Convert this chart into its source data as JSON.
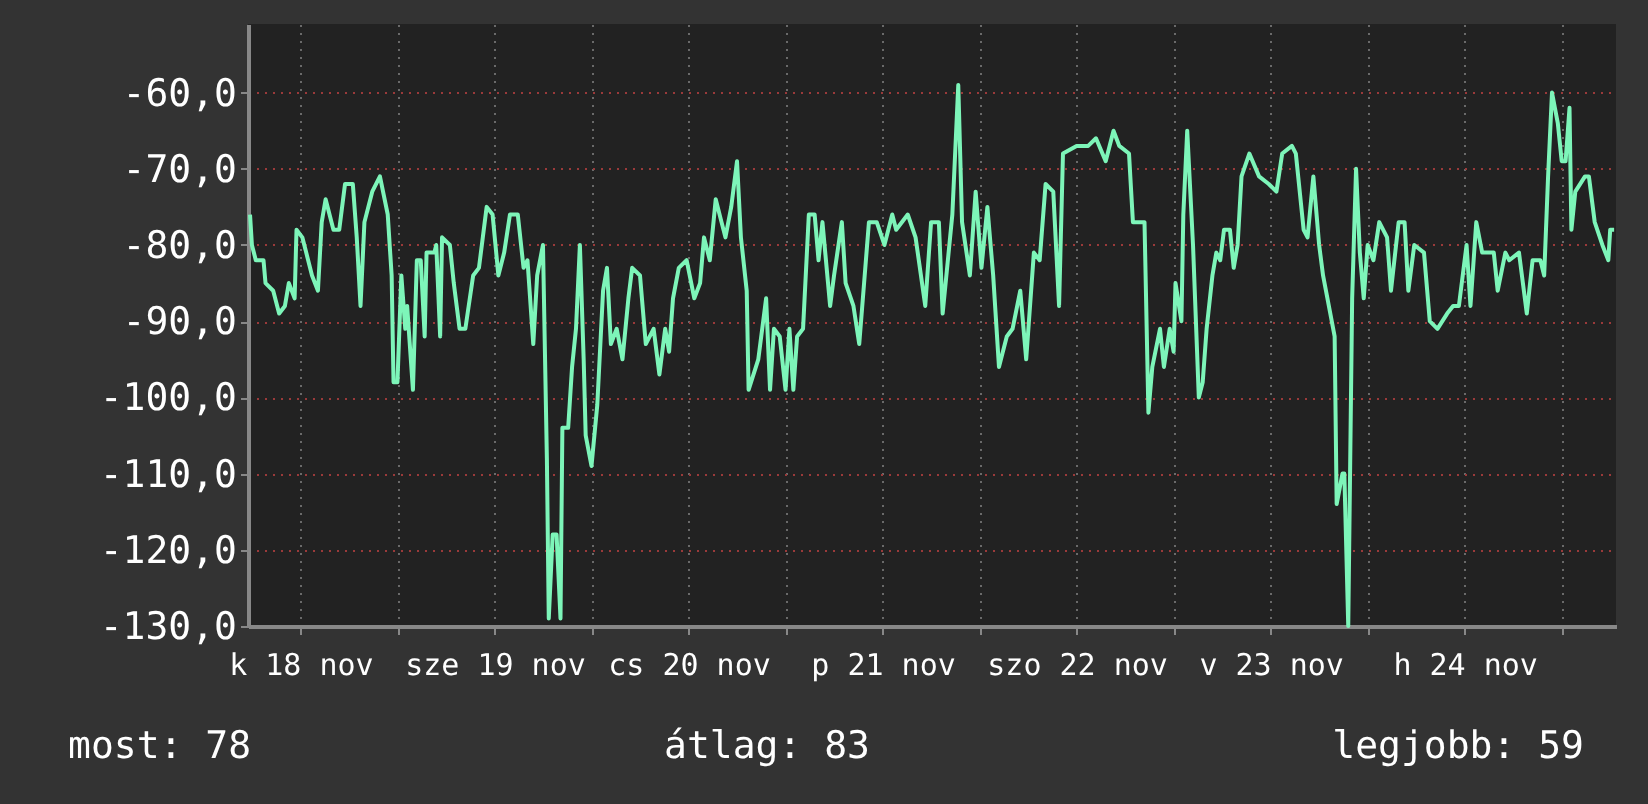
{
  "chart_data": {
    "type": "line",
    "xlim": [
      "--11-18T05:31",
      "--11-25T06:43"
    ],
    "ylim": [
      -130,
      -51
    ],
    "xticks": [
      {
        "value": "--11-18T12:00",
        "label": "k 18 nov"
      },
      {
        "value": "--11-19T00:00",
        "label": null
      },
      {
        "value": "--11-19T12:00",
        "label": "sze 19 nov"
      },
      {
        "value": "--11-20T00:00",
        "label": null
      },
      {
        "value": "--11-20T12:00",
        "label": "cs 20 nov"
      },
      {
        "value": "--11-21T00:00",
        "label": null
      },
      {
        "value": "--11-21T12:00",
        "label": "p 21 nov"
      },
      {
        "value": "--11-22T00:00",
        "label": null
      },
      {
        "value": "--11-22T12:00",
        "label": "szo 22 nov"
      },
      {
        "value": "--11-23T00:00",
        "label": null
      },
      {
        "value": "--11-23T12:00",
        "label": "v 23 nov"
      },
      {
        "value": "--11-24T00:00",
        "label": null
      },
      {
        "value": "--11-24T12:00",
        "label": "h 24 nov"
      },
      {
        "value": "--11-25T00:00",
        "label": null
      }
    ],
    "yticks": [
      {
        "value": -130,
        "label": "-130,0"
      },
      {
        "value": -120,
        "label": "-120,0"
      },
      {
        "value": -110,
        "label": "-110,0"
      },
      {
        "value": -100,
        "label": "-100,0"
      },
      {
        "value": -90,
        "label": "-90,0"
      },
      {
        "value": -80,
        "label": "-80,0"
      },
      {
        "value": -70,
        "label": "-70,0"
      },
      {
        "value": -60,
        "label": "-60,0"
      }
    ],
    "grid": true,
    "annotations": [
      "most: 78",
      "átlag: 83",
      "legjobb: 59"
    ],
    "series": [
      {
        "color": "#7df5b9",
        "x": [
          "--11-18T05:46",
          "--11-18T06:00",
          "--11-18T06:29",
          "--11-18T07:26",
          "--11-18T07:41",
          "--11-18T08:38",
          "--11-18T09:22",
          "--11-18T10:05",
          "--11-18T10:34",
          "--11-18T11:17",
          "--11-18T11:31",
          "--11-18T12:14",
          "--11-18T12:43",
          "--11-18T13:26",
          "--11-18T14:10",
          "--11-18T14:38",
          "--11-18T15:07",
          "--11-18T16:05",
          "--11-18T16:48",
          "--11-18T17:31",
          "--11-18T18:29",
          "--11-18T18:58",
          "--11-18T19:26",
          "--11-18T19:55",
          "--11-18T20:53",
          "--11-18T21:50",
          "--11-18T22:48",
          "--11-18T23:17",
          "--11-18T23:31",
          "--11-19T00:00",
          "--11-19T00:29",
          "--11-19T00:58",
          "--11-19T01:12",
          "--11-19T01:55",
          "--11-19T02:24",
          "--11-19T02:53",
          "--11-19T03:22",
          "--11-19T03:36",
          "--11-19T04:34",
          "--11-19T04:48",
          "--11-19T05:17",
          "--11-19T05:31",
          "--11-19T06:29",
          "--11-19T06:58",
          "--11-19T07:41",
          "--11-19T08:24",
          "--11-19T09:22",
          "--11-19T10:05",
          "--11-19T11:02",
          "--11-19T11:46",
          "--11-19T12:29",
          "--11-19T13:12",
          "--11-19T13:55",
          "--11-19T14:53",
          "--11-19T15:36",
          "--11-19T16:05",
          "--11-19T16:48",
          "--11-19T17:17",
          "--11-19T18:00",
          "--11-19T18:29",
          "--11-19T18:43",
          "--11-19T19:12",
          "--11-19T19:41",
          "--11-19T20:10",
          "--11-19T20:24",
          "--11-19T21:07",
          "--11-19T21:36",
          "--11-19T22:05",
          "--11-19T22:34",
          "--11-19T23:02",
          "--11-19T23:17",
          "--11-20T00:00",
          "--11-20T00:43",
          "--11-20T01:26",
          "--11-20T01:55",
          "--11-20T02:24",
          "--11-20T03:07",
          "--11-20T03:50",
          "--11-20T04:34",
          "--11-20T05:02",
          "--11-20T06:00",
          "--11-20T06:43",
          "--11-20T07:41",
          "--11-20T08:24",
          "--11-20T09:07",
          "--11-20T09:36",
          "--11-20T10:05",
          "--11-20T10:48",
          "--11-20T11:46",
          "--11-20T12:43",
          "--11-20T13:26",
          "--11-20T13:55",
          "--11-20T14:38",
          "--11-20T15:22",
          "--11-20T16:05",
          "--11-20T16:34",
          "--11-20T17:17",
          "--11-20T18:00",
          "--11-20T18:29",
          "--11-20T19:12",
          "--11-20T19:26",
          "--11-20T20:38",
          "--11-20T21:36",
          "--11-20T22:05",
          "--11-20T22:34",
          "--11-20T23:17",
          "--11-21T00:00",
          "--11-21T00:29",
          "--11-21T00:58",
          "--11-21T01:26",
          "--11-21T02:10",
          "--11-21T02:53",
          "--11-21T03:36",
          "--11-21T04:05",
          "--11-21T04:34",
          "--11-21T05:31",
          "--11-21T06:00",
          "--11-21T06:58",
          "--11-21T07:26",
          "--11-21T08:24",
          "--11-21T09:07",
          "--11-21T10:19",
          "--11-21T11:17",
          "--11-21T12:14",
          "--11-21T13:12",
          "--11-21T13:41",
          "--11-21T15:07",
          "--11-21T16:05",
          "--11-21T17:17",
          "--11-21T18:00",
          "--11-21T18:58",
          "--11-21T19:26",
          "--11-21T20:38",
          "--11-21T21:22",
          "--11-21T21:50",
          "--11-21T22:48",
          "--11-21T23:31",
          "--11-22T00:14",
          "--11-22T00:58",
          "--11-22T01:41",
          "--11-22T02:24",
          "--11-22T03:22",
          "--11-22T04:05",
          "--11-22T05:02",
          "--11-22T05:46",
          "--11-22T06:43",
          "--11-22T07:26",
          "--11-22T08:10",
          "--11-22T09:07",
          "--11-22T09:50",
          "--11-22T10:19",
          "--11-22T12:00",
          "--11-22T13:26",
          "--11-22T14:24",
          "--11-22T15:36",
          "--11-22T16:34",
          "--11-22T17:17",
          "--11-22T18:29",
          "--11-22T18:58",
          "--11-22T19:41",
          "--11-22T20:24",
          "--11-22T20:53",
          "--11-22T21:22",
          "--11-22T22:19",
          "--11-22T22:48",
          "--11-22T23:31",
          "--11-23T00:00",
          "--11-23T00:14",
          "--11-23T00:58",
          "--11-23T01:12",
          "--11-23T01:41",
          "--11-23T02:24",
          "--11-23T03:07",
          "--11-23T03:36",
          "--11-23T04:05",
          "--11-23T04:48",
          "--11-23T05:17",
          "--11-23T05:46",
          "--11-23T06:14",
          "--11-23T06:58",
          "--11-23T07:26",
          "--11-23T07:55",
          "--11-23T08:24",
          "--11-23T09:22",
          "--11-23T10:34",
          "--11-23T11:46",
          "--11-23T12:43",
          "--11-23T13:26",
          "--11-23T14:38",
          "--11-23T15:07",
          "--11-23T16:05",
          "--11-23T16:34",
          "--11-23T17:17",
          "--11-23T18:00",
          "--11-23T18:29",
          "--11-23T19:12",
          "--11-23T19:55",
          "--11-23T20:10",
          "--11-23T20:53",
          "--11-23T21:07",
          "--11-23T21:36",
          "--11-23T22:05",
          "--11-23T22:34",
          "--11-23T23:02",
          "--11-23T23:31",
          "--11-24T00:00",
          "--11-24T00:43",
          "--11-24T01:26",
          "--11-24T02:24",
          "--11-24T02:53",
          "--11-24T03:50",
          "--11-24T04:34",
          "--11-24T05:02",
          "--11-24T05:46",
          "--11-24T06:58",
          "--11-24T07:41",
          "--11-24T08:38",
          "--11-24T09:50",
          "--11-24T10:34",
          "--11-24T11:17",
          "--11-24T12:14",
          "--11-24T12:43",
          "--11-24T13:26",
          "--11-24T14:10",
          "--11-24T15:36",
          "--11-24T16:05",
          "--11-24T17:02",
          "--11-24T17:31",
          "--11-24T18:43",
          "--11-24T19:41",
          "--11-24T20:24",
          "--11-24T21:22",
          "--11-24T21:50",
          "--11-24T22:19",
          "--11-24T22:48",
          "--11-24T23:31",
          "--11-25T00:00",
          "--11-25T00:29",
          "--11-25T00:58",
          "--11-25T01:12",
          "--11-25T01:41",
          "--11-25T02:53",
          "--11-25T03:22",
          "--11-25T04:05",
          "--11-25T05:02",
          "--11-25T05:46",
          "--11-25T06:00",
          "--11-25T06:29"
        ],
        "values": [
          -76,
          -80,
          -82,
          -82,
          -85,
          -86,
          -89,
          -88,
          -85,
          -87,
          -78,
          -79,
          -81,
          -84,
          -86,
          -77,
          -74,
          -78,
          -78,
          -72,
          -72,
          -79,
          -88,
          -77,
          -73,
          -71,
          -76,
          -84,
          -98,
          -98,
          -84,
          -91,
          -88,
          -99,
          -82,
          -82,
          -92,
          -81,
          -81,
          -80,
          -92,
          -79,
          -80,
          -85,
          -91,
          -91,
          -84,
          -83,
          -75,
          -76,
          -84,
          -81,
          -76,
          -76,
          -83,
          -82,
          -93,
          -84,
          -80,
          -108,
          -129,
          -118,
          -118,
          -129,
          -104,
          -104,
          -96,
          -91,
          -80,
          -95,
          -105,
          -109,
          -101,
          -86,
          -83,
          -93,
          -91,
          -95,
          -87,
          -83,
          -84,
          -93,
          -91,
          -97,
          -91,
          -94,
          -87,
          -83,
          -82,
          -87,
          -85,
          -79,
          -82,
          -74,
          -77,
          -79,
          -75,
          -69,
          -79,
          -86,
          -99,
          -95,
          -87,
          -99,
          -91,
          -92,
          -99,
          -91,
          -99,
          -92,
          -91,
          -76,
          -76,
          -82,
          -77,
          -88,
          -84,
          -77,
          -85,
          -88,
          -93,
          -77,
          -77,
          -80,
          -76,
          -78,
          -76,
          -79,
          -88,
          -77,
          -77,
          -89,
          -76,
          -59,
          -77,
          -84,
          -73,
          -83,
          -75,
          -84,
          -96,
          -92,
          -91,
          -86,
          -95,
          -81,
          -82,
          -72,
          -73,
          -88,
          -68,
          -67,
          -67,
          -66,
          -69,
          -65,
          -67,
          -68,
          -77,
          -77,
          -77,
          -102,
          -96,
          -91,
          -96,
          -91,
          -94,
          -85,
          -90,
          -76,
          -65,
          -80,
          -100,
          -98,
          -91,
          -84,
          -81,
          -82,
          -78,
          -78,
          -83,
          -80,
          -71,
          -68,
          -71,
          -72,
          -73,
          -68,
          -67,
          -68,
          -78,
          -79,
          -71,
          -80,
          -84,
          -88,
          -92,
          -114,
          -110,
          -110,
          -130,
          -87,
          -70,
          -81,
          -87,
          -80,
          -82,
          -77,
          -79,
          -86,
          -77,
          -77,
          -86,
          -80,
          -81,
          -90,
          -91,
          -89,
          -88,
          -88,
          -80,
          -88,
          -77,
          -81,
          -81,
          -86,
          -81,
          -82,
          -81,
          -89,
          -82,
          -82,
          -84,
          -71,
          -60,
          -64,
          -69,
          -69,
          -62,
          -78,
          -73,
          -71,
          -71,
          -77,
          -80,
          -82,
          -78,
          -78
        ]
      }
    ]
  }
}
